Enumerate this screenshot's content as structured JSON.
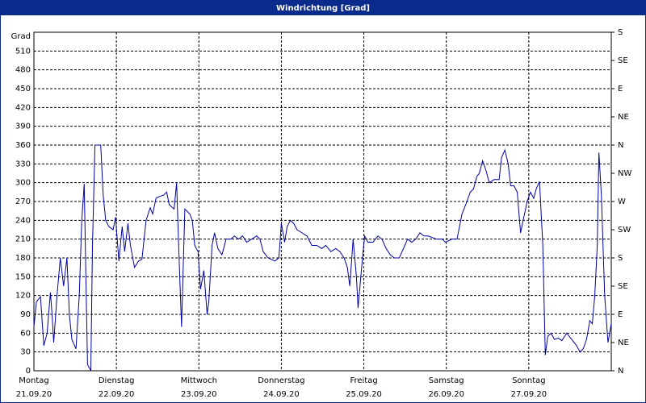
{
  "chart_data": {
    "type": "line",
    "title": "Windrichtung [Grad]",
    "y_label": "Grad",
    "color": "#0000a8",
    "grid": true,
    "xlim": [
      0,
      7
    ],
    "xticks": [
      {
        "value": 0,
        "label": [
          "Montag",
          "21.09.20"
        ]
      },
      {
        "value": 1,
        "label": [
          "Dienstag",
          "22.09.20"
        ]
      },
      {
        "value": 2,
        "label": [
          "Mittwoch",
          "23.09.20"
        ]
      },
      {
        "value": 3,
        "label": [
          "Donnerstag",
          "24.09.20"
        ]
      },
      {
        "value": 4,
        "label": [
          "Freitag",
          "25.09.20"
        ]
      },
      {
        "value": 5,
        "label": [
          "Samstag",
          "26.09.20"
        ]
      },
      {
        "value": 6,
        "label": [
          "Sonntag",
          "27.09.20"
        ]
      }
    ],
    "ylim": [
      0,
      540
    ],
    "yticks": [
      0,
      30,
      60,
      90,
      120,
      150,
      180,
      210,
      240,
      270,
      300,
      330,
      360,
      390,
      420,
      450,
      480,
      510
    ],
    "y2lim": [
      0,
      540
    ],
    "y2ticks": [
      {
        "value": 0,
        "label": "N"
      },
      {
        "value": 45,
        "label": "NE"
      },
      {
        "value": 90,
        "label": "E"
      },
      {
        "value": 135,
        "label": "SE"
      },
      {
        "value": 180,
        "label": "S"
      },
      {
        "value": 225,
        "label": "SW"
      },
      {
        "value": 270,
        "label": "W"
      },
      {
        "value": 315,
        "label": "NW"
      },
      {
        "value": 360,
        "label": "N"
      },
      {
        "value": 405,
        "label": "NE"
      },
      {
        "value": 450,
        "label": "E"
      },
      {
        "value": 495,
        "label": "SE"
      },
      {
        "value": 540,
        "label": "S"
      }
    ],
    "x": [
      0,
      0.03,
      0.08,
      0.12,
      0.16,
      0.2,
      0.22,
      0.24,
      0.28,
      0.32,
      0.36,
      0.4,
      0.43,
      0.46,
      0.51,
      0.55,
      0.58,
      0.61,
      0.63,
      0.65,
      0.69,
      0.71,
      0.74,
      0.81,
      0.84,
      0.87,
      0.91,
      0.96,
      0.99,
      1.03,
      1.07,
      1.1,
      1.14,
      1.17,
      1.22,
      1.27,
      1.31,
      1.36,
      1.41,
      1.44,
      1.48,
      1.52,
      1.57,
      1.61,
      1.64,
      1.7,
      1.73,
      1.76,
      1.79,
      1.83,
      1.89,
      1.92,
      1.95,
      1.99,
      2.02,
      2.06,
      2.1,
      2.12,
      2.16,
      2.19,
      2.23,
      2.28,
      2.33,
      2.39,
      2.43,
      2.48,
      2.53,
      2.58,
      2.64,
      2.7,
      2.74,
      2.78,
      2.84,
      2.92,
      2.97,
      3.0,
      3.04,
      3.07,
      3.11,
      3.15,
      3.19,
      3.25,
      3.31,
      3.37,
      3.43,
      3.49,
      3.54,
      3.6,
      3.66,
      3.71,
      3.76,
      3.8,
      3.83,
      3.87,
      3.91,
      3.93,
      3.97,
      4.01,
      4.05,
      4.11,
      4.17,
      4.22,
      4.27,
      4.32,
      4.37,
      4.43,
      4.48,
      4.53,
      4.58,
      4.63,
      4.68,
      4.73,
      4.78,
      4.88,
      4.95,
      4.99,
      5.07,
      5.13,
      5.19,
      5.25,
      5.29,
      5.33,
      5.37,
      5.4,
      5.44,
      5.48,
      5.52,
      5.58,
      5.64,
      5.67,
      5.71,
      5.75,
      5.78,
      5.82,
      5.86,
      5.9,
      5.94,
      5.98,
      6.02,
      6.06,
      6.09,
      6.13,
      6.17,
      6.2,
      6.23,
      6.27,
      6.31,
      6.36,
      6.4,
      6.46,
      6.52,
      6.58,
      6.62,
      6.66,
      6.7,
      6.74,
      6.77,
      6.8,
      6.83,
      6.85,
      6.88,
      6.92,
      6.96,
      7.0
    ],
    "values": [
      70,
      110,
      118,
      40,
      60,
      125,
      90,
      45,
      120,
      180,
      135,
      180,
      90,
      50,
      35,
      120,
      240,
      298,
      150,
      10,
      0,
      200,
      360,
      360,
      280,
      240,
      230,
      225,
      245,
      175,
      230,
      190,
      235,
      200,
      165,
      175,
      178,
      240,
      260,
      250,
      275,
      278,
      280,
      285,
      265,
      258,
      300,
      180,
      70,
      258,
      250,
      240,
      200,
      190,
      130,
      160,
      90,
      110,
      200,
      220,
      195,
      185,
      210,
      210,
      215,
      210,
      215,
      205,
      210,
      215,
      210,
      190,
      180,
      175,
      180,
      235,
      205,
      230,
      240,
      235,
      225,
      220,
      215,
      200,
      200,
      195,
      200,
      190,
      195,
      190,
      180,
      165,
      135,
      210,
      150,
      100,
      160,
      215,
      205,
      205,
      215,
      210,
      195,
      185,
      180,
      180,
      195,
      210,
      205,
      210,
      220,
      215,
      215,
      210,
      210,
      205,
      210,
      210,
      250,
      270,
      285,
      290,
      310,
      315,
      335,
      320,
      300,
      305,
      305,
      340,
      352,
      330,
      295,
      295,
      285,
      220,
      245,
      270,
      285,
      275,
      290,
      302,
      200,
      25,
      55,
      60,
      50,
      52,
      48,
      60,
      50,
      40,
      30,
      35,
      50,
      80,
      75,
      120,
      200,
      348,
      280,
      120,
      45,
      75
    ]
  }
}
